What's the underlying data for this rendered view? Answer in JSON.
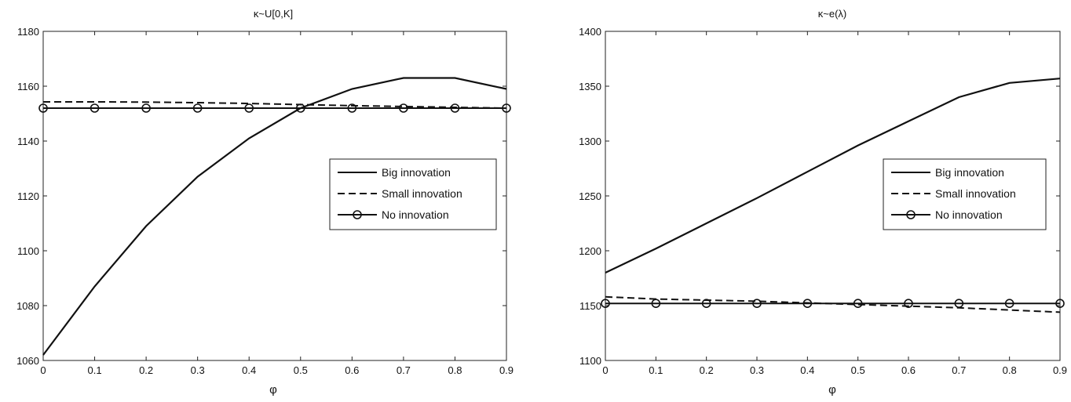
{
  "chart_data": [
    {
      "type": "line",
      "title": "κ~U[0,K]",
      "xlabel": "φ",
      "ylabel": "",
      "xlim": [
        0,
        0.9
      ],
      "ylim": [
        1060,
        1180
      ],
      "xticks": [
        "0",
        "0.1",
        "0.2",
        "0.3",
        "0.4",
        "0.5",
        "0.6",
        "0.7",
        "0.8",
        "0.9"
      ],
      "yticks": [
        "1060",
        "1080",
        "1100",
        "1120",
        "1140",
        "1160",
        "1180"
      ],
      "grid": false,
      "legend_position": "center-right",
      "x": [
        0,
        0.1,
        0.2,
        0.3,
        0.4,
        0.5,
        0.6,
        0.7,
        0.8,
        0.9
      ],
      "series": [
        {
          "name": "Big innovation",
          "style": "solid",
          "color": "#111111",
          "values": [
            1062,
            1087,
            1109,
            1127,
            1141,
            1152,
            1159,
            1163,
            1163,
            1159
          ]
        },
        {
          "name": "Small innovation",
          "style": "dashed",
          "color": "#111111",
          "values": [
            1154.3,
            1154.3,
            1154.2,
            1154.0,
            1153.7,
            1153.3,
            1152.9,
            1152.6,
            1152.3,
            1152.0
          ]
        },
        {
          "name": "No innovation",
          "style": "solid-circle",
          "color": "#111111",
          "values": [
            1152,
            1152,
            1152,
            1152,
            1152,
            1152,
            1152,
            1152,
            1152,
            1152
          ]
        }
      ]
    },
    {
      "type": "line",
      "title": "κ~e(λ)",
      "xlabel": "φ",
      "ylabel": "",
      "xlim": [
        0,
        0.9
      ],
      "ylim": [
        1100,
        1400
      ],
      "xticks": [
        "0",
        "0.1",
        "0.2",
        "0.3",
        "0.4",
        "0.5",
        "0.6",
        "0.7",
        "0.8",
        "0.9"
      ],
      "yticks": [
        "1100",
        "1150",
        "1200",
        "1250",
        "1300",
        "1350",
        "1400"
      ],
      "grid": false,
      "legend_position": "center-right",
      "x": [
        0,
        0.1,
        0.2,
        0.3,
        0.4,
        0.5,
        0.6,
        0.7,
        0.8,
        0.9
      ],
      "series": [
        {
          "name": "Big innovation",
          "style": "solid",
          "color": "#111111",
          "values": [
            1180,
            1202,
            1225,
            1248,
            1272,
            1296,
            1318,
            1340,
            1353,
            1357
          ]
        },
        {
          "name": "Small innovation",
          "style": "dashed",
          "color": "#111111",
          "values": [
            1158,
            1156,
            1155,
            1154,
            1152.5,
            1151,
            1149.5,
            1148,
            1146,
            1144
          ]
        },
        {
          "name": "No innovation",
          "style": "solid-circle",
          "color": "#111111",
          "values": [
            1152,
            1152,
            1152,
            1152,
            1152,
            1152,
            1152,
            1152,
            1152,
            1152
          ]
        }
      ]
    }
  ]
}
